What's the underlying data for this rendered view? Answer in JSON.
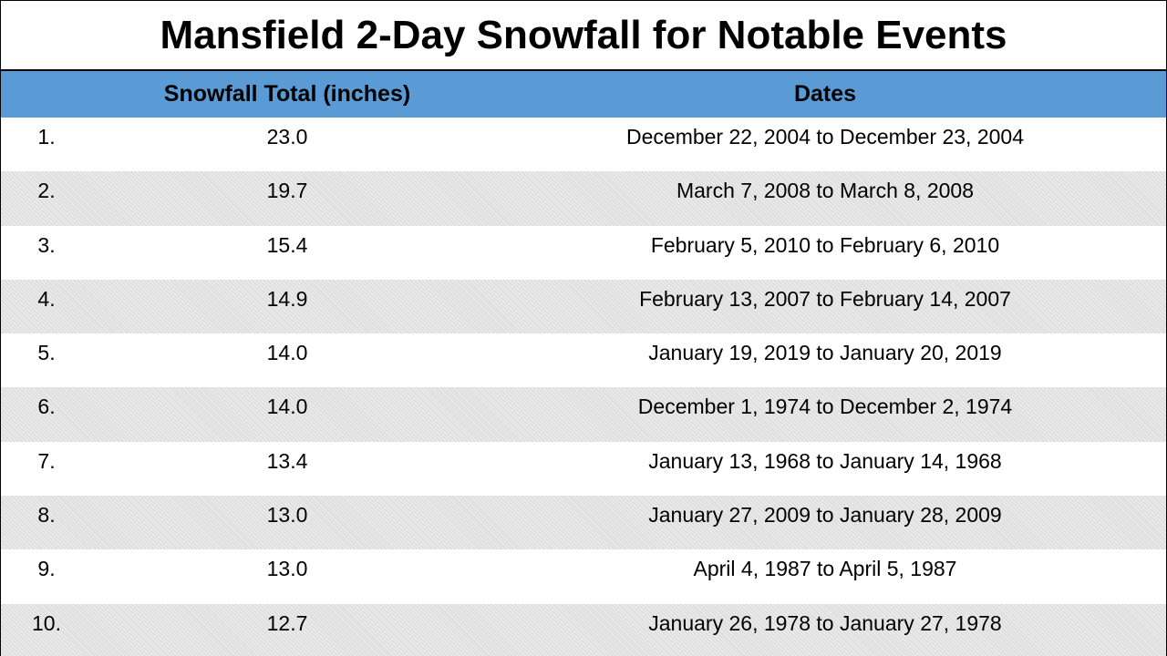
{
  "chart_data": {
    "type": "table",
    "title": "Mansfield 2-Day Snowfall for Notable Events",
    "columns": [
      "",
      "Snowfall Total (inches)",
      "Dates"
    ],
    "rows": [
      {
        "rank": "1.",
        "total": "23.0",
        "dates": "December 22, 2004 to December 23, 2004"
      },
      {
        "rank": "2.",
        "total": "19.7",
        "dates": "March 7, 2008 to March 8, 2008"
      },
      {
        "rank": "3.",
        "total": "15.4",
        "dates": "February 5, 2010 to February 6, 2010"
      },
      {
        "rank": "4.",
        "total": "14.9",
        "dates": "February 13, 2007 to February 14, 2007"
      },
      {
        "rank": "5.",
        "total": "14.0",
        "dates": "January 19, 2019 to January 20, 2019"
      },
      {
        "rank": "6.",
        "total": "14.0",
        "dates": "December 1, 1974 to December 2, 1974"
      },
      {
        "rank": "7.",
        "total": "13.4",
        "dates": "January 13, 1968 to January 14, 1968"
      },
      {
        "rank": "8.",
        "total": "13.0",
        "dates": "January 27, 2009 to January 28, 2009"
      },
      {
        "rank": "9.",
        "total": "13.0",
        "dates": "April 4, 1987 to April 5, 1987"
      },
      {
        "rank": "10.",
        "total": "12.7",
        "dates": "January 26, 1978 to January 27, 1978"
      }
    ]
  },
  "colors": {
    "header_bg": "#5b9bd5",
    "stripe_bg": "#dedede"
  }
}
